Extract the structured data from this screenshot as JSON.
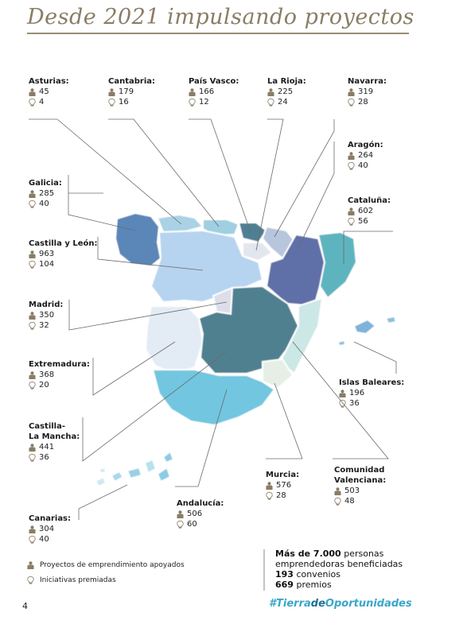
{
  "title": "Desde 2021 impulsando proyectos",
  "regions": [
    {
      "key": "asturias",
      "name": "Asturias:",
      "projects": "45",
      "awards": "4"
    },
    {
      "key": "cantabria",
      "name": "Cantabria:",
      "projects": "179",
      "awards": "16"
    },
    {
      "key": "pais_vasco",
      "name": "País Vasco:",
      "projects": "166",
      "awards": "12"
    },
    {
      "key": "la_rioja",
      "name": "La Rioja:",
      "projects": "225",
      "awards": "24"
    },
    {
      "key": "navarra",
      "name": "Navarra:",
      "projects": "319",
      "awards": "28"
    },
    {
      "key": "aragon",
      "name": "Aragón:",
      "projects": "264",
      "awards": "40"
    },
    {
      "key": "galicia",
      "name": "Galicia:",
      "projects": "285",
      "awards": "40"
    },
    {
      "key": "cataluna",
      "name": "Cataluña:",
      "projects": "602",
      "awards": "56"
    },
    {
      "key": "castilla_leon",
      "name": "Castilla y León:",
      "projects": "963",
      "awards": "104"
    },
    {
      "key": "madrid",
      "name": "Madrid:",
      "projects": "350",
      "awards": "32"
    },
    {
      "key": "extremadura",
      "name": "Extremadura:",
      "projects": "368",
      "awards": "20"
    },
    {
      "key": "islas_baleares",
      "name": "Islas Baleares:",
      "projects": "196",
      "awards": "36"
    },
    {
      "key": "castilla_la_mancha",
      "name_line1": "Castilla-",
      "name_line2": "La Mancha:",
      "projects": "441",
      "awards": "36"
    },
    {
      "key": "murcia",
      "name": "Murcia:",
      "projects": "576",
      "awards": "28"
    },
    {
      "key": "comunidad_valenciana",
      "name_line1": "Comunidad",
      "name_line2": "Valenciana:",
      "projects": "503",
      "awards": "48"
    },
    {
      "key": "andalucia",
      "name": "Andalucía:",
      "projects": "506",
      "awards": "60"
    },
    {
      "key": "canarias",
      "name": "Canarias:",
      "projects": "304",
      "awards": "40"
    }
  ],
  "legend": {
    "projects_label": "Proyectos de emprendimiento apoyados",
    "awards_label": "Iniciativas premiadas",
    "projects_icon": "person-icon",
    "awards_icon": "lightbulb-icon"
  },
  "stats": {
    "line1_bold": "Más de 7.000",
    "line1_rest": " personas",
    "line2": "emprendedoras beneficiadas",
    "line3_bold": "193",
    "line3_rest": " convenios",
    "line4_bold": "669",
    "line4_rest": " premios"
  },
  "page_number": "4",
  "hashtag": {
    "part1": "#Tierra",
    "part2": "de",
    "part3": "Oportunidades"
  },
  "colors": {
    "accent_gold": "#8a7d66",
    "icon": "#8a7d66",
    "hashtag": "#3aa6c9",
    "line": "#555555"
  }
}
